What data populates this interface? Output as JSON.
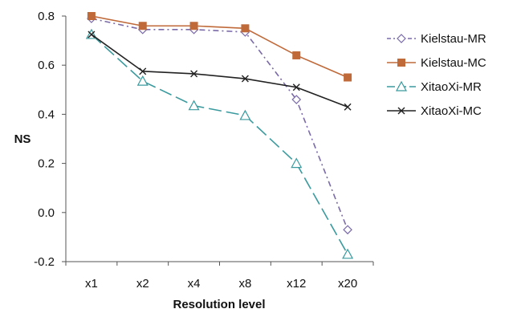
{
  "chart_data": {
    "type": "line",
    "title": "",
    "xlabel": "Resolution level",
    "ylabel": "NS",
    "categories": [
      "x1",
      "x2",
      "x4",
      "x8",
      "x12",
      "x20"
    ],
    "ylim": [
      -0.2,
      0.8
    ],
    "yticks": [
      "0.8",
      "0.6",
      "0.4",
      "0.2",
      "0.0",
      "-0.2"
    ],
    "ytick_values": [
      0.8,
      0.6,
      0.4,
      0.2,
      0.0,
      -0.2
    ],
    "grid": false,
    "legend_position": "right",
    "series": [
      {
        "name": "Kielstau-MR",
        "values": [
          0.79,
          0.745,
          0.745,
          0.735,
          0.46,
          -0.07
        ],
        "color": "#7a6aa8",
        "dash": "dash-dot",
        "marker": "diamond-open"
      },
      {
        "name": "Kielstau-MC",
        "values": [
          0.8,
          0.76,
          0.76,
          0.75,
          0.64,
          0.55
        ],
        "color": "#c06a3a",
        "dash": "solid",
        "marker": "square-filled"
      },
      {
        "name": "XitaoXi-MR",
        "values": [
          0.725,
          0.535,
          0.435,
          0.395,
          0.2,
          -0.17
        ],
        "color": "#3a9a9e",
        "dash": "long-dash",
        "marker": "triangle-open"
      },
      {
        "name": "XitaoXi-MC",
        "values": [
          0.725,
          0.575,
          0.565,
          0.545,
          0.51,
          0.43
        ],
        "color": "#222222",
        "dash": "solid",
        "marker": "cross"
      }
    ]
  }
}
